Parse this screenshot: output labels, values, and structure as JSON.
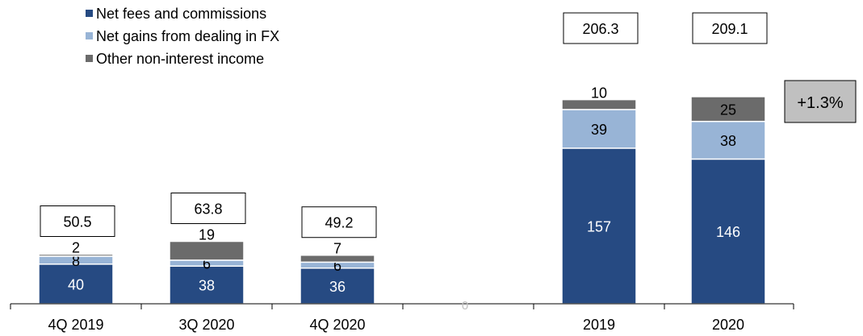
{
  "chart_data": {
    "type": "bar",
    "stacked": true,
    "categories": [
      "4Q 2019",
      "3Q 2020",
      "4Q 2020",
      "",
      "2019",
      "2020"
    ],
    "series": [
      {
        "name": "Net fees and commissions",
        "color": "#264a82",
        "label_color": "#ffffff",
        "values": [
          40,
          38,
          36,
          null,
          157,
          146
        ]
      },
      {
        "name": "Net gains from dealing in FX",
        "color": "#98b4d6",
        "label_color": "#000000",
        "values": [
          8,
          6,
          6,
          null,
          39,
          38
        ]
      },
      {
        "name": "Other non-interest income",
        "color": "#6b6b6b",
        "label_color": "#000000",
        "values": [
          2,
          19,
          7,
          null,
          10,
          25
        ]
      }
    ],
    "totals": [
      "50.5",
      "63.8",
      "49.2",
      "",
      "206.3",
      "209.1"
    ],
    "gap_marker": "0",
    "growth_badge": "+1.3%",
    "growth_badge_color": "#c0c0c0",
    "legend_position": "top-left",
    "grid": false
  }
}
